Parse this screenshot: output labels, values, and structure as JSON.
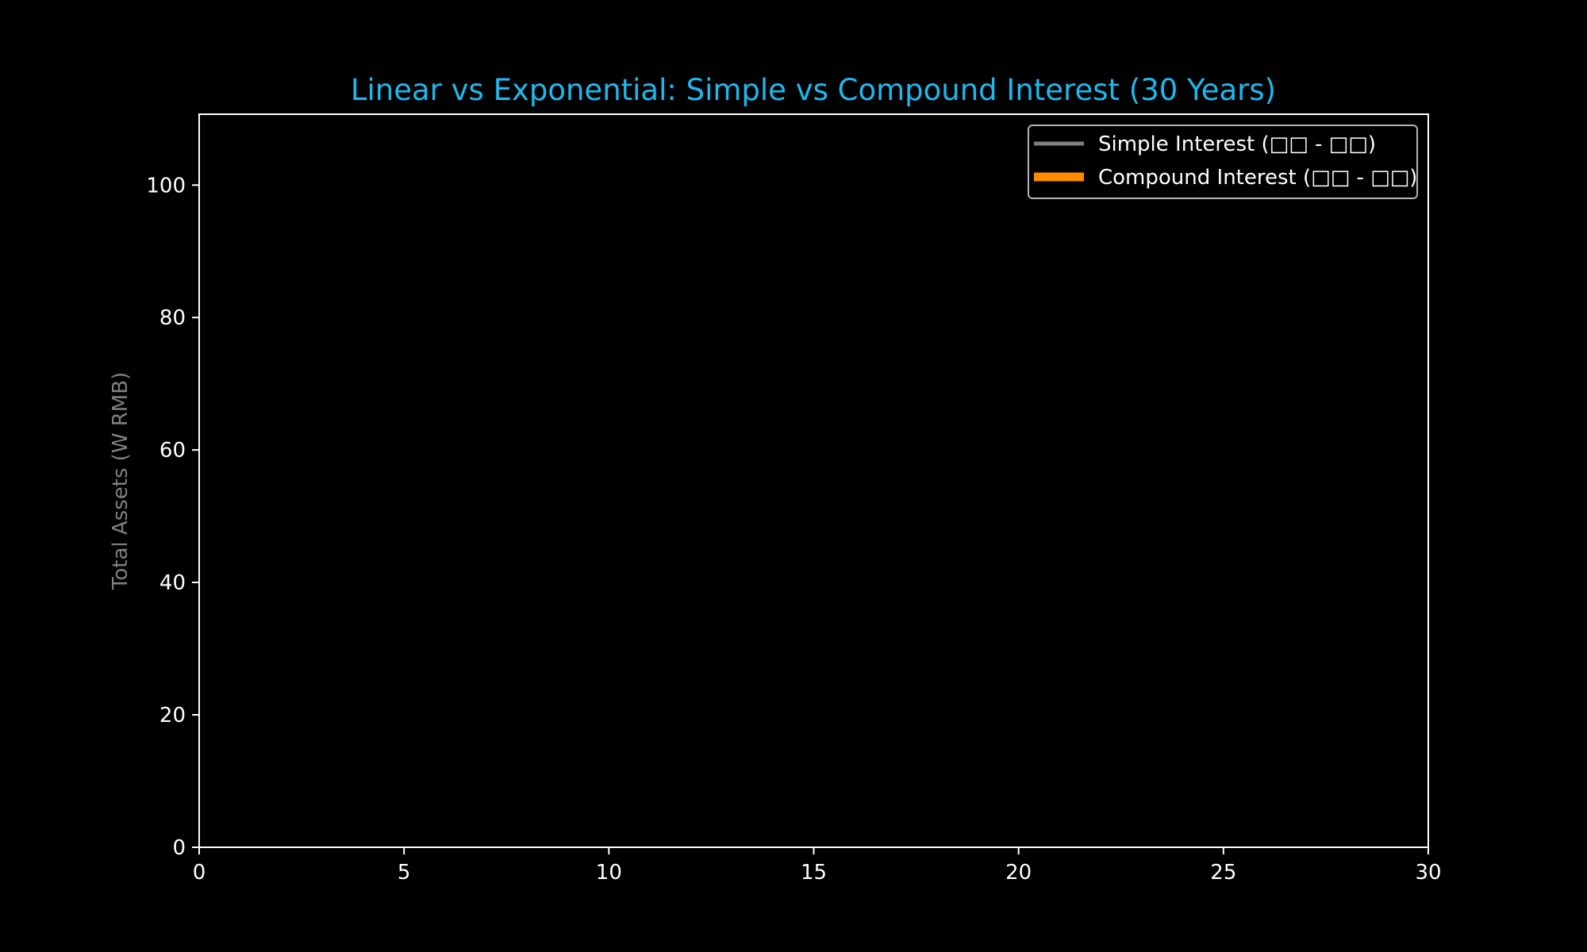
{
  "chart_data": {
    "type": "line",
    "title": "Linear vs Exponential: Simple vs Compound Interest (30 Years)",
    "xlabel": "",
    "ylabel": "Total Assets (W RMB)",
    "xlim": [
      0,
      30
    ],
    "ylim": [
      0,
      110.7
    ],
    "xticks": [
      0,
      5,
      10,
      15,
      20,
      25,
      30
    ],
    "yticks": [
      0,
      20,
      40,
      60,
      80,
      100
    ],
    "grid": false,
    "legend_position": "top-right",
    "series": [
      {
        "name": "Simple Interest (□□ - □□)",
        "color": "#808080",
        "x": [],
        "y": []
      },
      {
        "name": "Compound Interest (□□ - □□)",
        "color": "#ff8c00",
        "x": [],
        "y": []
      }
    ],
    "colors": {
      "background": "#000000",
      "title": "#1fb8ee",
      "axis": "#ffffff",
      "ylabel": "#808080",
      "legend_border": "#b3b3b3"
    }
  }
}
